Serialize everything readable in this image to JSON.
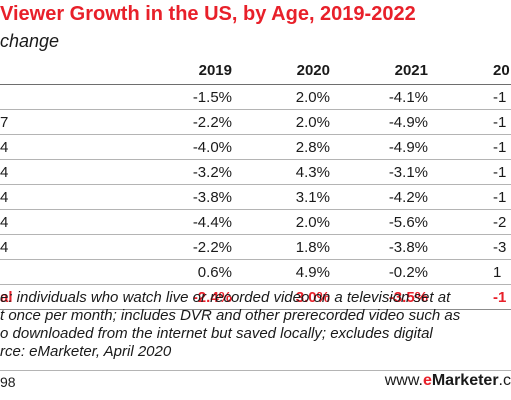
{
  "title": "Viewer Growth in the US, by Age, 2019-2022",
  "subtitle": "change",
  "chart_data": {
    "type": "table",
    "columns": [
      "2019",
      "2020",
      "2021",
      "20"
    ],
    "rows": [
      {
        "label": "",
        "values": [
          "-1.5%",
          "2.0%",
          "-4.1%",
          "-1"
        ]
      },
      {
        "label": "7",
        "values": [
          "-2.2%",
          "2.0%",
          "-4.9%",
          "-1"
        ]
      },
      {
        "label": "4",
        "values": [
          "-4.0%",
          "2.8%",
          "-4.9%",
          "-1"
        ]
      },
      {
        "label": "4",
        "values": [
          "-3.2%",
          "4.3%",
          "-3.1%",
          "-1"
        ]
      },
      {
        "label": "4",
        "values": [
          "-3.8%",
          "3.1%",
          "-4.2%",
          "-1"
        ]
      },
      {
        "label": "4",
        "values": [
          "-4.4%",
          "2.0%",
          "-5.6%",
          "-2"
        ]
      },
      {
        "label": "4",
        "values": [
          "-2.2%",
          "1.8%",
          "-3.8%",
          "-3"
        ]
      },
      {
        "label": "",
        "values": [
          "0.6%",
          "4.9%",
          "-0.2%",
          "1"
        ]
      },
      {
        "label": "al",
        "values": [
          "-2.4%",
          "3.0%",
          "-3.5%",
          "-1"
        ],
        "total": true
      }
    ]
  },
  "notes": [
    "e: individuals who watch live or recorded video on a television set at",
    "t once per month; includes DVR and other prerecorded video such as",
    "o downloaded from the internet but saved locally; excludes digital",
    "rce: eMarketer, April 2020"
  ],
  "footer": {
    "id": "98",
    "brand_prefix": "www.",
    "brand_e": "e",
    "brand_name": "Marketer",
    "brand_suffix": ".c"
  },
  "colors": {
    "accent": "#e8202a",
    "text": "#1a1a1a",
    "rule": "#b4b4b4"
  }
}
